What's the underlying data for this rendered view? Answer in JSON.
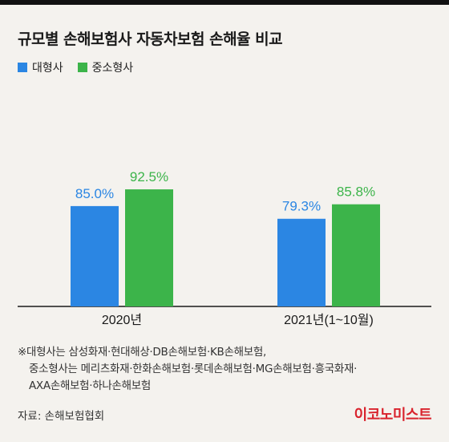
{
  "title": "규모별 손해보험사 자동차보험 손해율 비교",
  "legend": [
    {
      "label": "대형사",
      "color": "#2b86e3"
    },
    {
      "label": "중소형사",
      "color": "#3cb44a"
    }
  ],
  "chart_data": {
    "type": "bar",
    "title": "규모별 손해보험사 자동차보험 손해율 비교",
    "categories": [
      "2020년",
      "2021년(1~10월)"
    ],
    "series": [
      {
        "name": "대형사",
        "values": [
          85.0,
          79.3
        ],
        "labels": [
          "85.0%",
          "79.3%"
        ],
        "color": "#2b86e3"
      },
      {
        "name": "중소형사",
        "values": [
          92.5,
          85.8
        ],
        "labels": [
          "92.5%",
          "85.8%"
        ],
        "color": "#3cb44a"
      }
    ],
    "xlabel": "",
    "ylabel": "",
    "grid": false,
    "legend_position": "top-left"
  },
  "note": {
    "line1": "※대형사는 삼성화재·현대해상·DB손해보험·KB손해보험,",
    "line2": "중소형사는 메리츠화재·한화손해보험·롯데손해보험·MG손해보험·흥국화재·",
    "line3": "AXA손해보험·하나손해보험"
  },
  "source": "자료: 손해보험협회",
  "logo": "이코노미스트"
}
